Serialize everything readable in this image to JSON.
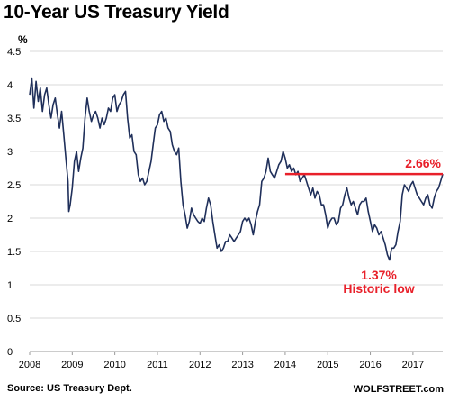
{
  "chart_data": {
    "type": "line",
    "title": "10-Year US Treasury Yield",
    "ylabel": "%",
    "ylim": [
      0,
      4.5
    ],
    "yticks": [
      "0",
      "0.5",
      "1",
      "1.5",
      "2",
      "2.5",
      "3",
      "3.5",
      "4",
      "4.5"
    ],
    "xlim": [
      2008,
      2017.7
    ],
    "xticks": [
      "2008",
      "2009",
      "2010",
      "2011",
      "2012",
      "2013",
      "2014",
      "2015",
      "2016",
      "2017"
    ],
    "grid": "horizontal",
    "series": [
      {
        "color": "#1f2f5a",
        "x": [
          2008.0,
          2008.05,
          2008.1,
          2008.15,
          2008.2,
          2008.25,
          2008.3,
          2008.35,
          2008.4,
          2008.45,
          2008.5,
          2008.55,
          2008.6,
          2008.65,
          2008.7,
          2008.75,
          2008.8,
          2008.85,
          2008.9,
          2008.92,
          2008.95,
          2009.0,
          2009.05,
          2009.1,
          2009.15,
          2009.2,
          2009.25,
          2009.3,
          2009.35,
          2009.4,
          2009.45,
          2009.5,
          2009.55,
          2009.6,
          2009.65,
          2009.7,
          2009.75,
          2009.8,
          2009.85,
          2009.9,
          2009.95,
          2010.0,
          2010.05,
          2010.1,
          2010.15,
          2010.2,
          2010.25,
          2010.3,
          2010.35,
          2010.4,
          2010.45,
          2010.5,
          2010.55,
          2010.6,
          2010.65,
          2010.7,
          2010.75,
          2010.8,
          2010.85,
          2010.9,
          2010.95,
          2011.0,
          2011.05,
          2011.1,
          2011.15,
          2011.2,
          2011.25,
          2011.3,
          2011.35,
          2011.4,
          2011.45,
          2011.5,
          2011.55,
          2011.6,
          2011.65,
          2011.7,
          2011.75,
          2011.8,
          2011.85,
          2011.9,
          2011.95,
          2012.0,
          2012.05,
          2012.1,
          2012.15,
          2012.2,
          2012.25,
          2012.3,
          2012.35,
          2012.4,
          2012.45,
          2012.5,
          2012.55,
          2012.6,
          2012.65,
          2012.7,
          2012.75,
          2012.8,
          2012.85,
          2012.9,
          2012.95,
          2013.0,
          2013.05,
          2013.1,
          2013.15,
          2013.2,
          2013.25,
          2013.3,
          2013.35,
          2013.4,
          2013.45,
          2013.5,
          2013.55,
          2013.6,
          2013.65,
          2013.7,
          2013.75,
          2013.8,
          2013.85,
          2013.9,
          2013.95,
          2014.0,
          2014.05,
          2014.1,
          2014.15,
          2014.2,
          2014.25,
          2014.3,
          2014.35,
          2014.4,
          2014.45,
          2014.5,
          2014.55,
          2014.6,
          2014.65,
          2014.7,
          2014.75,
          2014.8,
          2014.85,
          2014.9,
          2014.95,
          2015.0,
          2015.05,
          2015.1,
          2015.15,
          2015.2,
          2015.25,
          2015.3,
          2015.35,
          2015.4,
          2015.45,
          2015.5,
          2015.55,
          2015.6,
          2015.65,
          2015.7,
          2015.75,
          2015.8,
          2015.85,
          2015.9,
          2015.95,
          2016.0,
          2016.05,
          2016.1,
          2016.15,
          2016.2,
          2016.25,
          2016.3,
          2016.35,
          2016.4,
          2016.45,
          2016.5,
          2016.55,
          2016.6,
          2016.65,
          2016.7,
          2016.75,
          2016.8,
          2016.85,
          2016.9,
          2016.95,
          2017.0,
          2017.05,
          2017.1,
          2017.15,
          2017.2,
          2017.25,
          2017.3,
          2017.35,
          2017.4,
          2017.45,
          2017.5,
          2017.55,
          2017.6,
          2017.65,
          2017.7
        ],
        "values": [
          3.85,
          4.1,
          3.65,
          4.05,
          3.75,
          3.95,
          3.6,
          3.85,
          3.95,
          3.7,
          3.5,
          3.7,
          3.8,
          3.55,
          3.35,
          3.6,
          3.25,
          2.9,
          2.55,
          2.1,
          2.2,
          2.45,
          2.85,
          3.0,
          2.7,
          2.9,
          3.05,
          3.5,
          3.8,
          3.6,
          3.45,
          3.55,
          3.6,
          3.5,
          3.35,
          3.5,
          3.4,
          3.5,
          3.65,
          3.6,
          3.8,
          3.85,
          3.6,
          3.7,
          3.75,
          3.85,
          3.9,
          3.5,
          3.2,
          3.25,
          3.0,
          2.95,
          2.65,
          2.55,
          2.6,
          2.5,
          2.55,
          2.7,
          2.85,
          3.1,
          3.35,
          3.4,
          3.55,
          3.6,
          3.45,
          3.5,
          3.35,
          3.3,
          3.1,
          3.0,
          2.95,
          3.05,
          2.55,
          2.2,
          2.05,
          1.85,
          1.95,
          2.15,
          2.05,
          2.0,
          1.95,
          1.92,
          2.0,
          1.95,
          2.15,
          2.3,
          2.2,
          1.95,
          1.75,
          1.55,
          1.6,
          1.5,
          1.55,
          1.65,
          1.65,
          1.75,
          1.7,
          1.65,
          1.7,
          1.75,
          1.8,
          1.95,
          2.0,
          1.95,
          2.0,
          1.9,
          1.75,
          1.95,
          2.1,
          2.2,
          2.55,
          2.6,
          2.7,
          2.9,
          2.7,
          2.65,
          2.6,
          2.7,
          2.8,
          2.85,
          3.0,
          2.9,
          2.75,
          2.8,
          2.7,
          2.75,
          2.65,
          2.7,
          2.55,
          2.6,
          2.65,
          2.55,
          2.45,
          2.35,
          2.45,
          2.3,
          2.4,
          2.35,
          2.2,
          2.2,
          2.05,
          1.85,
          1.95,
          2.0,
          2.0,
          1.9,
          1.95,
          2.15,
          2.2,
          2.35,
          2.45,
          2.3,
          2.2,
          2.25,
          2.15,
          2.05,
          2.2,
          2.25,
          2.25,
          2.3,
          2.1,
          1.95,
          1.8,
          1.9,
          1.85,
          1.75,
          1.8,
          1.7,
          1.6,
          1.45,
          1.37,
          1.55,
          1.55,
          1.6,
          1.8,
          1.95,
          2.35,
          2.5,
          2.45,
          2.4,
          2.5,
          2.55,
          2.45,
          2.35,
          2.3,
          2.25,
          2.2,
          2.3,
          2.35,
          2.2,
          2.15,
          2.3,
          2.4,
          2.45,
          2.55,
          2.66
        ]
      }
    ],
    "reference_line": {
      "value": 2.66,
      "from": 2014.0,
      "to": 2017.7,
      "label": "2.66%",
      "color": "#e8202a"
    },
    "annotations": [
      {
        "text": "1.37%",
        "x": 2016.2,
        "y": 1.08
      },
      {
        "text": "Historic low",
        "x": 2016.2,
        "y": 0.88
      }
    ]
  },
  "source": "Source: US Treasury Dept.",
  "brand": "WOLFSTREET.com"
}
